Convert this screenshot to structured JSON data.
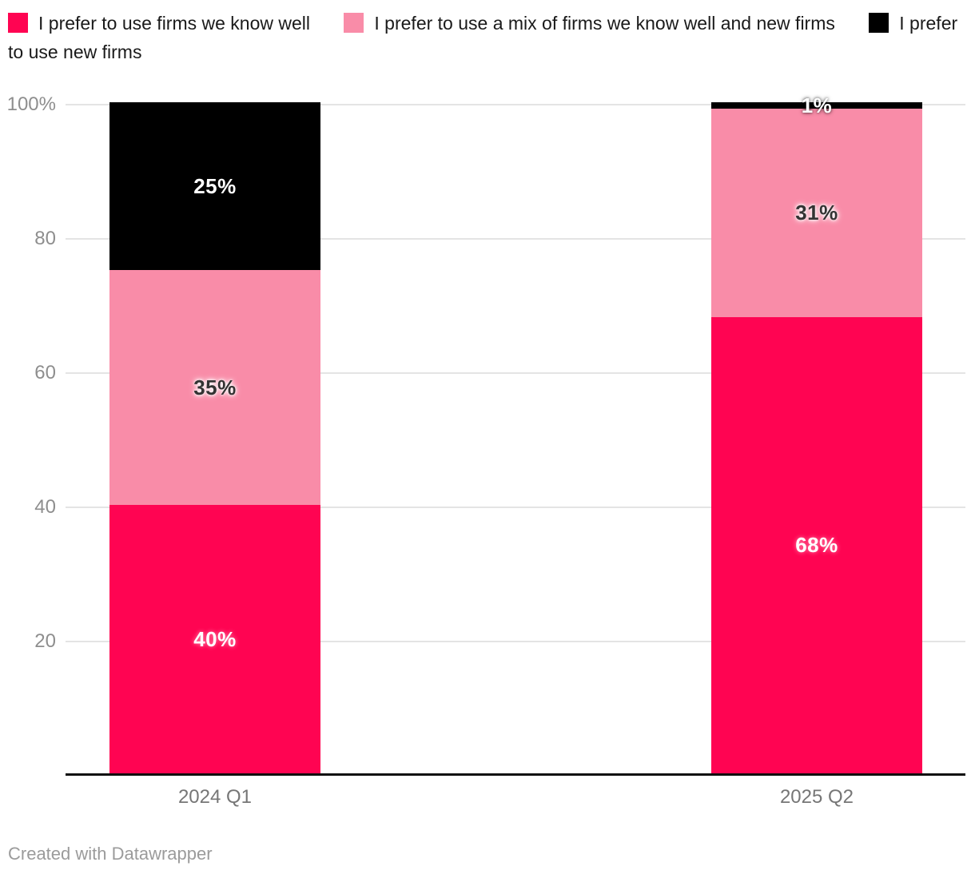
{
  "footer": {
    "credit": "Created with Datawrapper"
  },
  "chart_data": {
    "type": "bar",
    "stacked": true,
    "unit": "%",
    "title": "",
    "xlabel": "",
    "ylabel": "",
    "categories": [
      "2024 Q1",
      "2025 Q2"
    ],
    "series": [
      {
        "name": "I prefer to use firms we know well",
        "color": "#ff0452",
        "values": [
          40,
          68
        ],
        "data_labels": [
          "40%",
          "68%"
        ]
      },
      {
        "name": "I prefer to use a mix of firms we know well and new firms",
        "color": "#f98ca8",
        "values": [
          35,
          31
        ],
        "data_labels": [
          "35%",
          "31%"
        ]
      },
      {
        "name": "I prefer to use new firms",
        "color": "#000000",
        "values": [
          25,
          1
        ],
        "data_labels": [
          "25%",
          "1%"
        ]
      }
    ],
    "ylim": [
      0,
      100
    ],
    "ytick_values": [
      100,
      80,
      60,
      40,
      20
    ],
    "yticks": [
      "100%",
      "80",
      "60",
      "40",
      "20"
    ],
    "grid": true,
    "legend_position": "top",
    "axis_label_colors": {
      "ticks": "#8e8e8e",
      "categories": "#767676"
    },
    "gridline_color": "#e4e4e4",
    "baseline_color": "#0e0e0e"
  }
}
